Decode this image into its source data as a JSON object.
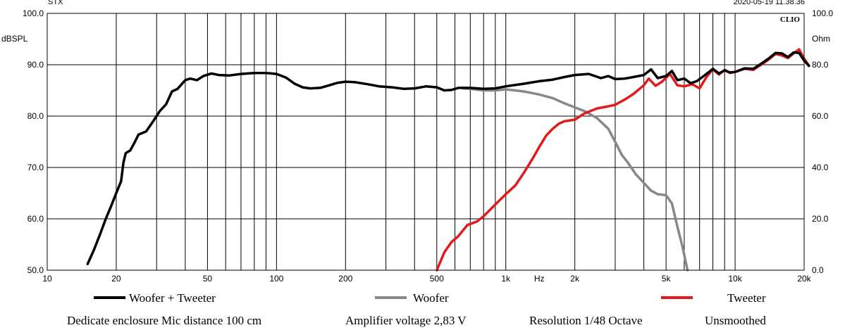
{
  "chart_data": {
    "type": "line",
    "header_left": "STX",
    "header_right": "2020-05-19 11.38.36",
    "brand": "CLIO",
    "y_unit_left": "dBSPL",
    "y_unit_right": "Ohm",
    "x_unit": "Hz",
    "x_scale": "log",
    "xlim": [
      10,
      20000
    ],
    "ylim": [
      50,
      100
    ],
    "ylim_right": [
      0,
      100
    ],
    "grid": true,
    "x_tick_labels": [
      {
        "v": 10,
        "t": "10"
      },
      {
        "v": 20,
        "t": "20"
      },
      {
        "v": 50,
        "t": "50"
      },
      {
        "v": 100,
        "t": "100"
      },
      {
        "v": 200,
        "t": "200"
      },
      {
        "v": 500,
        "t": "500"
      },
      {
        "v": 1000,
        "t": "1k"
      },
      {
        "v": 1400,
        "t": "Hz"
      },
      {
        "v": 2000,
        "t": "2k"
      },
      {
        "v": 5000,
        "t": "5k"
      },
      {
        "v": 10000,
        "t": "10k"
      },
      {
        "v": 20000,
        "t": "20k"
      }
    ],
    "y_tick_labels": [
      "50.0",
      "60.0",
      "70.0",
      "80.0",
      "90.0",
      "100.0"
    ],
    "y_right_tick_labels": [
      "0.0",
      "20.0",
      "40.0",
      "60.0",
      "80.0",
      "100.0"
    ],
    "series": [
      {
        "name": "Woofer + Tweeter",
        "color": "#000000",
        "points": [
          [
            15,
            51.2
          ],
          [
            16,
            54
          ],
          [
            17,
            57
          ],
          [
            18,
            60
          ],
          [
            19,
            62.5
          ],
          [
            20,
            65
          ],
          [
            21,
            67.3
          ],
          [
            21.5,
            71
          ],
          [
            22,
            72.8
          ],
          [
            23,
            73.3
          ],
          [
            24,
            74.8
          ],
          [
            25,
            76.4
          ],
          [
            27,
            77
          ],
          [
            29,
            79
          ],
          [
            31,
            81
          ],
          [
            33,
            82.3
          ],
          [
            35,
            84.8
          ],
          [
            37,
            85.3
          ],
          [
            40,
            87
          ],
          [
            42,
            87.3
          ],
          [
            45,
            87
          ],
          [
            48,
            87.8
          ],
          [
            52,
            88.3
          ],
          [
            56,
            88
          ],
          [
            62,
            87.9
          ],
          [
            70,
            88.2
          ],
          [
            80,
            88.4
          ],
          [
            90,
            88.4
          ],
          [
            100,
            88.2
          ],
          [
            110,
            87.5
          ],
          [
            120,
            86.3
          ],
          [
            130,
            85.6
          ],
          [
            140,
            85.4
          ],
          [
            155,
            85.5
          ],
          [
            170,
            86
          ],
          [
            185,
            86.5
          ],
          [
            200,
            86.7
          ],
          [
            220,
            86.6
          ],
          [
            250,
            86.2
          ],
          [
            280,
            85.8
          ],
          [
            320,
            85.6
          ],
          [
            360,
            85.3
          ],
          [
            400,
            85.4
          ],
          [
            450,
            85.8
          ],
          [
            500,
            85.6
          ],
          [
            540,
            85
          ],
          [
            580,
            85.1
          ],
          [
            620,
            85.5
          ],
          [
            700,
            85.5
          ],
          [
            800,
            85.3
          ],
          [
            900,
            85.4
          ],
          [
            1000,
            85.8
          ],
          [
            1200,
            86.3
          ],
          [
            1400,
            86.8
          ],
          [
            1600,
            87.1
          ],
          [
            1800,
            87.6
          ],
          [
            2000,
            88
          ],
          [
            2300,
            88.2
          ],
          [
            2600,
            87.4
          ],
          [
            2800,
            87.8
          ],
          [
            3000,
            87.2
          ],
          [
            3300,
            87.3
          ],
          [
            3600,
            87.6
          ],
          [
            4000,
            88
          ],
          [
            4300,
            89.1
          ],
          [
            4600,
            87.4
          ],
          [
            5000,
            87.8
          ],
          [
            5300,
            88.8
          ],
          [
            5600,
            87
          ],
          [
            6000,
            87.3
          ],
          [
            6400,
            86.4
          ],
          [
            6800,
            86.8
          ],
          [
            7200,
            87.6
          ],
          [
            7600,
            88.4
          ],
          [
            8000,
            89.2
          ],
          [
            8500,
            88.3
          ],
          [
            9000,
            88.9
          ],
          [
            9500,
            88.5
          ],
          [
            10000,
            88.6
          ],
          [
            11000,
            89.3
          ],
          [
            12000,
            89.2
          ],
          [
            13000,
            90.2
          ],
          [
            14000,
            91.2
          ],
          [
            15000,
            92.3
          ],
          [
            16000,
            92.2
          ],
          [
            17000,
            91.5
          ],
          [
            18000,
            92.4
          ],
          [
            19000,
            92.3
          ],
          [
            20000,
            90.8
          ],
          [
            21000,
            89.8
          ]
        ]
      },
      {
        "name": "Woofer",
        "color": "#888888",
        "points": [
          [
            650,
            85.4
          ],
          [
            700,
            85.3
          ],
          [
            800,
            85
          ],
          [
            900,
            85
          ],
          [
            1000,
            85.2
          ],
          [
            1200,
            84.8
          ],
          [
            1400,
            84.2
          ],
          [
            1600,
            83.5
          ],
          [
            1800,
            82.5
          ],
          [
            2000,
            81.7
          ],
          [
            2200,
            81
          ],
          [
            2500,
            79.6
          ],
          [
            2800,
            77.5
          ],
          [
            3000,
            75
          ],
          [
            3200,
            72.5
          ],
          [
            3400,
            71
          ],
          [
            3700,
            68.6
          ],
          [
            4000,
            67
          ],
          [
            4300,
            65.5
          ],
          [
            4600,
            64.8
          ],
          [
            5000,
            64.6
          ],
          [
            5300,
            63
          ],
          [
            5600,
            58.5
          ],
          [
            5900,
            54.5
          ],
          [
            6200,
            50
          ]
        ]
      },
      {
        "name": "Tweeter",
        "color": "#e31a1c",
        "points": [
          [
            500,
            50
          ],
          [
            540,
            53.5
          ],
          [
            580,
            55.5
          ],
          [
            620,
            56.6
          ],
          [
            680,
            58.8
          ],
          [
            750,
            59.5
          ],
          [
            800,
            60.5
          ],
          [
            900,
            62.8
          ],
          [
            1000,
            64.8
          ],
          [
            1100,
            66.5
          ],
          [
            1200,
            69
          ],
          [
            1300,
            71.5
          ],
          [
            1400,
            74
          ],
          [
            1500,
            76.2
          ],
          [
            1600,
            77.5
          ],
          [
            1700,
            78.5
          ],
          [
            1800,
            79
          ],
          [
            2000,
            79.3
          ],
          [
            2200,
            80.5
          ],
          [
            2500,
            81.5
          ],
          [
            2800,
            81.9
          ],
          [
            3000,
            82.2
          ],
          [
            3300,
            83.2
          ],
          [
            3600,
            84.3
          ],
          [
            4000,
            86
          ],
          [
            4200,
            87.3
          ],
          [
            4500,
            85.9
          ],
          [
            4800,
            86.7
          ],
          [
            5200,
            88.2
          ],
          [
            5600,
            86
          ],
          [
            6000,
            85.8
          ],
          [
            6500,
            86.2
          ],
          [
            7000,
            85.4
          ],
          [
            7500,
            87.6
          ],
          [
            8000,
            89.1
          ],
          [
            8500,
            88.1
          ],
          [
            9000,
            89
          ],
          [
            9500,
            88.4
          ],
          [
            10000,
            88.6
          ],
          [
            11000,
            89.2
          ],
          [
            12000,
            89
          ],
          [
            13000,
            90
          ],
          [
            14000,
            91
          ],
          [
            15000,
            92.1
          ],
          [
            16000,
            91.8
          ],
          [
            17000,
            91.3
          ],
          [
            18000,
            92.2
          ],
          [
            19000,
            93
          ],
          [
            20000,
            91.2
          ],
          [
            21000,
            89.8
          ]
        ]
      }
    ],
    "legend": [
      "Woofer + Tweeter",
      "Woofer",
      "Tweeter"
    ],
    "footer": {
      "enclosure": "Dedicate enclosure Mic distance 100 cm",
      "amplifier": "Amplifier voltage 2,83 V",
      "resolution": "Resolution 1/48 Octave",
      "smoothing": "Unsmoothed"
    }
  }
}
